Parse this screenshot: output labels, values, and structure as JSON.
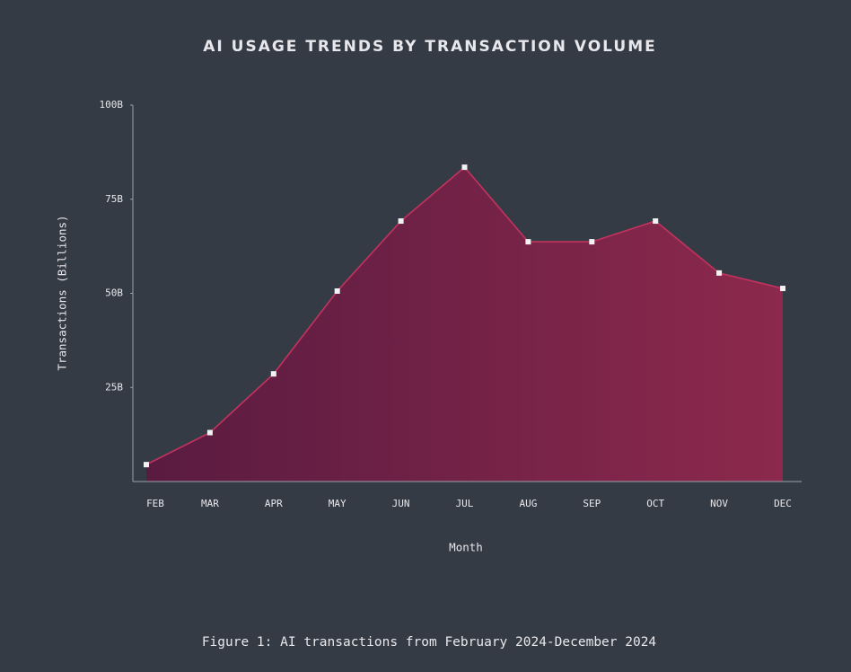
{
  "chart_data": {
    "type": "area",
    "title": "AI USAGE TRENDS BY TRANSACTION VOLUME",
    "x_label": "Month",
    "y_label": "Transactions (Billions)",
    "caption": "Figure 1: AI transactions from February 2024-December 2024",
    "categories": [
      "FEB",
      "MAR",
      "APR",
      "MAY",
      "JUN",
      "JUL",
      "AUG",
      "SEP",
      "OCT",
      "NOV",
      "DEC"
    ],
    "series": [
      {
        "color": "#c2335f",
        "values": [
          4.5,
          13,
          28.6,
          50.6,
          69.2,
          83.5,
          63.7,
          63.7,
          69.2,
          55.4,
          51.3
        ]
      }
    ],
    "fill_gradient": [
      "#5a1b41",
      "#8c294c"
    ],
    "marker_color": "#f2f2f2",
    "ylim": [
      0,
      100
    ],
    "yticks": [
      {
        "value": 25,
        "label": "25B"
      },
      {
        "value": 50,
        "label": "50B"
      },
      {
        "value": 75,
        "label": "75B"
      },
      {
        "value": 100,
        "label": "100B"
      }
    ],
    "grid": false
  }
}
